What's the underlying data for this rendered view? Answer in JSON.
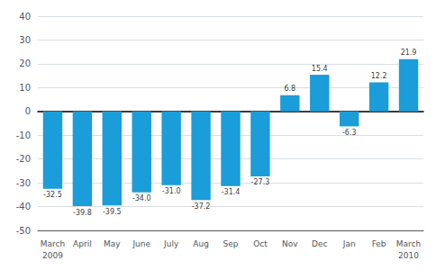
{
  "chart_data": {
    "type": "bar",
    "categories": [
      "March",
      "April",
      "May",
      "June",
      "July",
      "Aug",
      "Sep",
      "Oct",
      "Nov",
      "Dec",
      "Jan",
      "Feb",
      "March"
    ],
    "values": [
      -32.5,
      -39.8,
      -39.5,
      -34.0,
      -31.0,
      -37.2,
      -31.4,
      -27.3,
      6.8,
      15.4,
      -6.3,
      12.2,
      21.9
    ],
    "value_labels": [
      "-32.5",
      "-39.8",
      "-39.5",
      "-34.0",
      "-31.0",
      "-37.2",
      "-31.4",
      "-27.3",
      "6.8",
      "15.4",
      "-6.3",
      "12.2",
      "21.9"
    ],
    "data_labels": true,
    "color": "#1a9dd8",
    "ylim": [
      -50,
      40
    ],
    "yticks": [
      -50,
      -40,
      -30,
      -20,
      -10,
      0,
      10,
      20,
      30,
      40
    ],
    "grid": true,
    "annotations": [
      {
        "text": "2009",
        "index": 0
      },
      {
        "text": "2010",
        "index": 12
      }
    ]
  }
}
